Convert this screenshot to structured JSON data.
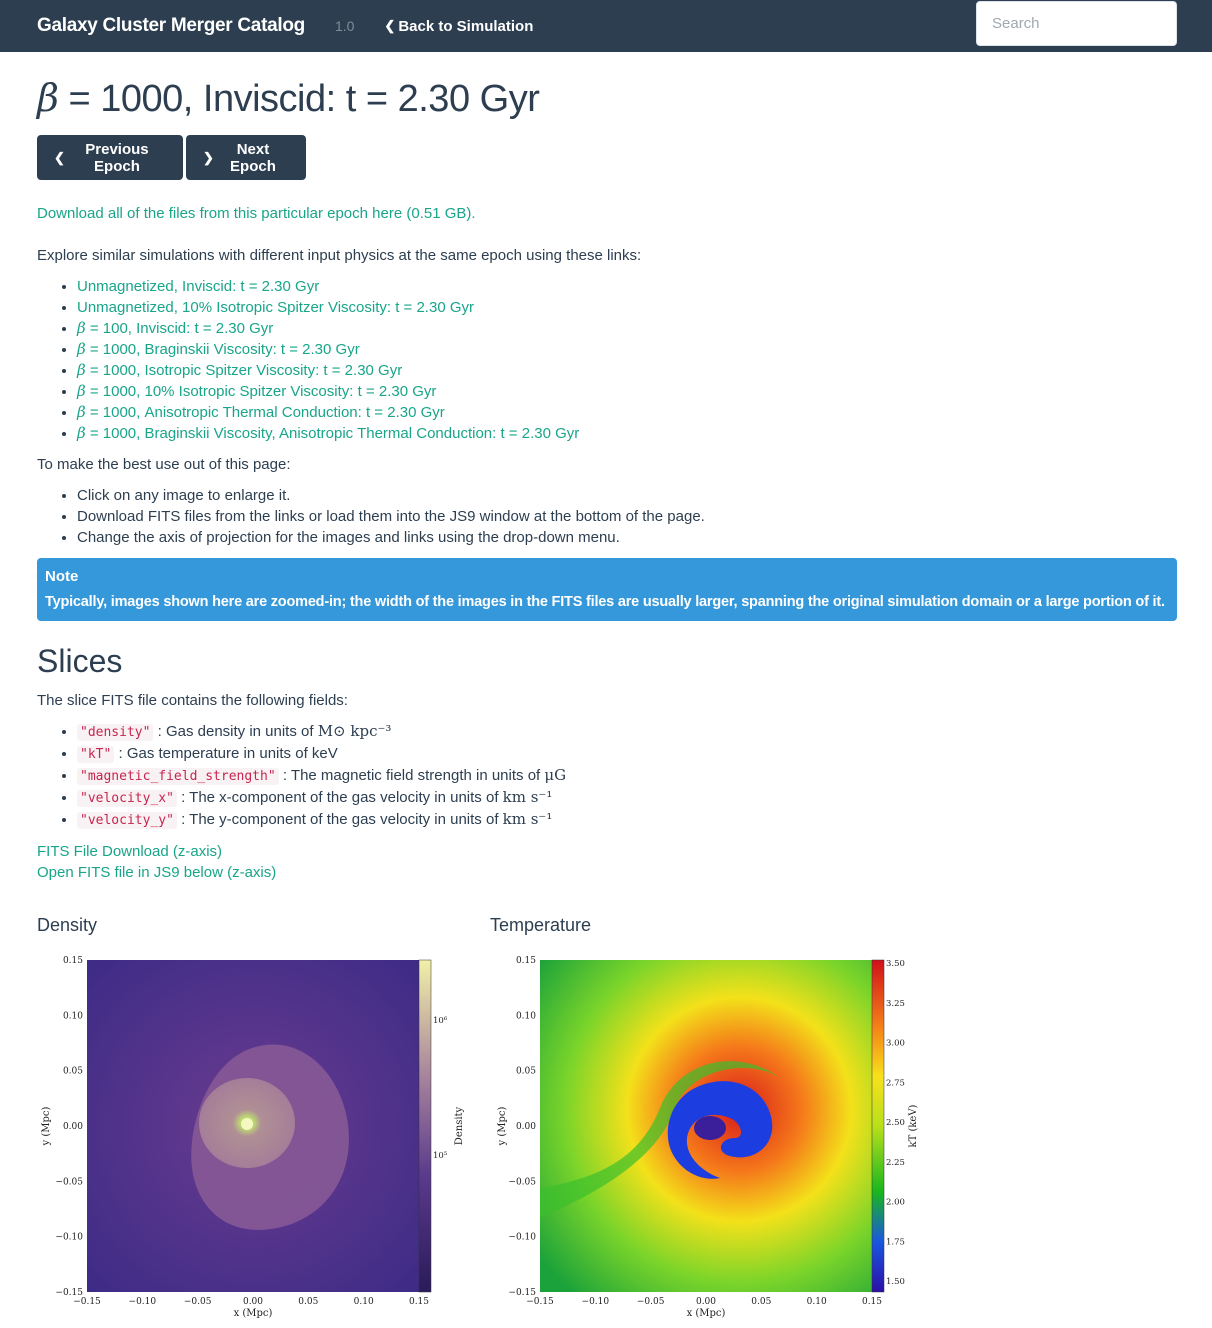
{
  "navbar": {
    "brand": "Galaxy Cluster Merger Catalog",
    "version": "1.0",
    "back_link": "Back to Simulation",
    "search_placeholder": "Search"
  },
  "page": {
    "title_symbol": "β",
    "title_rest": " = 1000, Inviscid: t = 2.30 Gyr",
    "prev_label": "Previous Epoch",
    "next_label": "Next Epoch",
    "download_all": "Download all of the files from this particular epoch here (0.51 GB).",
    "explore_text": "Explore similar simulations with different input physics at the same epoch using these links:",
    "similar_links": [
      {
        "beta": "",
        "text": "Unmagnetized, Inviscid: t = 2.30 Gyr"
      },
      {
        "beta": "",
        "text": "Unmagnetized, 10% Isotropic Spitzer Viscosity: t = 2.30 Gyr"
      },
      {
        "beta": "β",
        "text": " = 100, Inviscid: t = 2.30 Gyr"
      },
      {
        "beta": "β",
        "text": " = 1000, Braginskii Viscosity: t = 2.30 Gyr"
      },
      {
        "beta": "β",
        "text": " = 1000, Isotropic Spitzer Viscosity: t = 2.30 Gyr"
      },
      {
        "beta": "β",
        "text": " = 1000, 10% Isotropic Spitzer Viscosity: t = 2.30 Gyr"
      },
      {
        "beta": "β",
        "text": " = 1000, Anisotropic Thermal Conduction: t = 2.30 Gyr"
      },
      {
        "beta": "β",
        "text": " = 1000, Braginskii Viscosity, Anisotropic Thermal Conduction: t = 2.30 Gyr"
      }
    ],
    "best_use_text": "To make the best use out of this page:",
    "tips": [
      "Click on any image to enlarge it.",
      "Download FITS files from the links or load them into the JS9 window at the bottom of the page.",
      "Change the axis of projection for the images and links using the drop-down menu."
    ],
    "note_title": "Note",
    "note_body": "Typically, images shown here are zoomed-in; the width of the images in the FITS files are usually larger, spanning the original simulation domain or a large portion of it."
  },
  "slices": {
    "heading": "Slices",
    "intro": "The slice FITS file contains the following fields:",
    "fields": [
      {
        "code": "\"density\"",
        "desc": " : Gas density in units of ",
        "math": "M⊙ kpc⁻³"
      },
      {
        "code": "\"kT\"",
        "desc": " : Gas temperature in units of keV",
        "math": ""
      },
      {
        "code": "\"magnetic_field_strength\"",
        "desc": " : The magnetic field strength in units of ",
        "math": "μG"
      },
      {
        "code": "\"velocity_x\"",
        "desc": " : The x-component of the gas velocity in units of ",
        "math": "km s⁻¹"
      },
      {
        "code": "\"velocity_y\"",
        "desc": " : The y-component of the gas velocity in units of ",
        "math": "km s⁻¹"
      }
    ],
    "fits_download": "FITS File Download (z-axis)",
    "fits_js9": "Open FITS file in JS9 below (z-axis)"
  },
  "plots": {
    "density": {
      "title": "Density",
      "xlabel": "x (Mpc)",
      "ylabel": "y (Mpc)",
      "x_ticks": [
        "−0.15",
        "−0.10",
        "−0.05",
        "0.00",
        "0.05",
        "0.10",
        "0.15"
      ],
      "y_ticks": [
        "0.15",
        "0.10",
        "0.05",
        "0.00",
        "−0.05",
        "−0.10",
        "−0.15"
      ],
      "cbar_ticks": [
        "10⁶",
        "10⁵"
      ],
      "cbar_label": "Density"
    },
    "temperature": {
      "title": "Temperature",
      "xlabel": "x (Mpc)",
      "ylabel": "y (Mpc)",
      "x_ticks": [
        "−0.15",
        "−0.10",
        "−0.05",
        "0.00",
        "0.05",
        "0.10",
        "0.15"
      ],
      "y_ticks": [
        "0.15",
        "0.10",
        "0.05",
        "0.00",
        "−0.05",
        "−0.10",
        "−0.15"
      ],
      "cbar_ticks": [
        "3.50",
        "3.25",
        "3.00",
        "2.75",
        "2.50",
        "2.25",
        "2.00",
        "1.75",
        "1.50"
      ],
      "cbar_label": "kT (keV)"
    }
  }
}
